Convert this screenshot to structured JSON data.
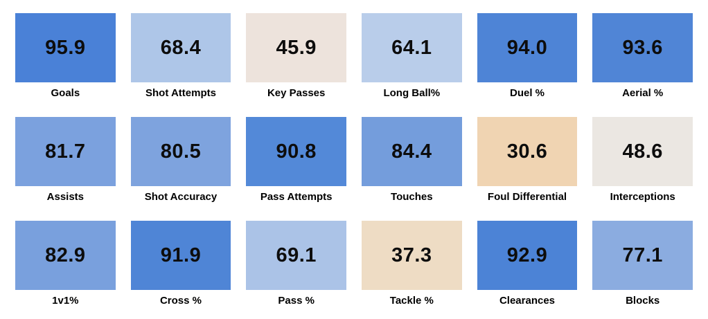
{
  "chart_data": {
    "type": "heatmap",
    "title": "",
    "grid": {
      "rows": 3,
      "cols": 6
    },
    "value_range": [
      0,
      100
    ],
    "colormap_hint": "low values tan/peach, mid values off-white, high values blue",
    "tiles": [
      {
        "label": "Goals",
        "value": 95.9,
        "display": "95.9",
        "color": "#4a81d7"
      },
      {
        "label": "Shot Attempts",
        "value": 68.4,
        "display": "68.4",
        "color": "#aec6e8"
      },
      {
        "label": "Key Passes",
        "value": 45.9,
        "display": "45.9",
        "color": "#ede3dc"
      },
      {
        "label": "Long Ball%",
        "value": 64.1,
        "display": "64.1",
        "color": "#b9cdea"
      },
      {
        "label": "Duel %",
        "value": 94.0,
        "display": "94.0",
        "color": "#4e84d6"
      },
      {
        "label": "Aerial %",
        "value": 93.6,
        "display": "93.6",
        "color": "#5085d6"
      },
      {
        "label": "Assists",
        "value": 81.7,
        "display": "81.7",
        "color": "#7ba1de"
      },
      {
        "label": "Shot Accuracy",
        "value": 80.5,
        "display": "80.5",
        "color": "#7ea3de"
      },
      {
        "label": "Pass Attempts",
        "value": 90.8,
        "display": "90.8",
        "color": "#5389d8"
      },
      {
        "label": "Touches",
        "value": 84.4,
        "display": "84.4",
        "color": "#749ddc"
      },
      {
        "label": "Foul Differential",
        "value": 30.6,
        "display": "30.6",
        "color": "#f0d4b2"
      },
      {
        "label": "Interceptions",
        "value": 48.6,
        "display": "48.6",
        "color": "#ebe7e2"
      },
      {
        "label": "1v1%",
        "value": 82.9,
        "display": "82.9",
        "color": "#79a0dd"
      },
      {
        "label": "Cross %",
        "value": 91.9,
        "display": "91.9",
        "color": "#4f85d6"
      },
      {
        "label": "Pass %",
        "value": 69.1,
        "display": "69.1",
        "color": "#abc3e7"
      },
      {
        "label": "Tackle %",
        "value": 37.3,
        "display": "37.3",
        "color": "#eedcc4"
      },
      {
        "label": "Clearances",
        "value": 92.9,
        "display": "92.9",
        "color": "#4c83d6"
      },
      {
        "label": "Blocks",
        "value": 77.1,
        "display": "77.1",
        "color": "#8bace0"
      }
    ]
  }
}
